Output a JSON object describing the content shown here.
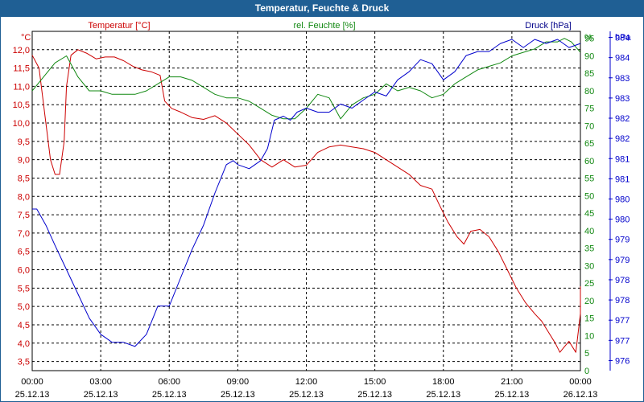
{
  "window": {
    "title": "Temperatur, Feuchte & Druck"
  },
  "colors": {
    "temperature": "#cc0000",
    "humidity": "#118811",
    "pressure": "#0000cc",
    "grid": "#000000"
  },
  "chart_data": {
    "type": "line",
    "title": "Temperatur, Feuchte & Druck",
    "legend": [
      "Temperatur [°C]",
      "rel. Feuchte [%]",
      "Druck [hPa]"
    ],
    "axes": {
      "left": {
        "unit": "°C",
        "min": 3.25,
        "max": 12.5,
        "ticks": [
          "12,0",
          "11,5",
          "11,0",
          "10,5",
          "10,0",
          "9,5",
          "9,0",
          "8,5",
          "8,0",
          "7,5",
          "7,0",
          "6,5",
          "6,0",
          "5,5",
          "5,0",
          "4,5",
          "4,0",
          "3,5"
        ]
      },
      "mid": {
        "unit": "%",
        "min": 0,
        "max": 97,
        "ticks": [
          "95",
          "90",
          "85",
          "80",
          "75",
          "70",
          "65",
          "60",
          "55",
          "50",
          "45",
          "40",
          "35",
          "30",
          "25",
          "20",
          "15",
          "10",
          "5",
          "0"
        ]
      },
      "right": {
        "unit": "hPa",
        "min": 976,
        "max": 984.4,
        "ticks": [
          [
            "984",
            984.25
          ],
          [
            "984",
            983.75
          ],
          [
            "983",
            983.25
          ],
          [
            "983",
            982.75
          ],
          [
            "982",
            982.25
          ],
          [
            "982",
            981.75
          ],
          [
            "981",
            981.25
          ],
          [
            "981",
            980.75
          ],
          [
            "980",
            980.25
          ],
          [
            "980",
            979.75
          ],
          [
            "979",
            979.25
          ],
          [
            "979",
            978.75
          ],
          [
            "978",
            978.25
          ],
          [
            "978",
            977.75
          ],
          [
            "977",
            977.25
          ],
          [
            "977",
            976.75
          ],
          [
            "976",
            976.25
          ]
        ]
      }
    },
    "x_ticks": [
      {
        "time": "00:00",
        "date": "25.12.13"
      },
      {
        "time": "03:00",
        "date": "25.12.13"
      },
      {
        "time": "06:00",
        "date": "25.12.13"
      },
      {
        "time": "09:00",
        "date": "25.12.13"
      },
      {
        "time": "12:00",
        "date": "25.12.13"
      },
      {
        "time": "15:00",
        "date": "25.12.13"
      },
      {
        "time": "18:00",
        "date": "25.12.13"
      },
      {
        "time": "21:00",
        "date": "25.12.13"
      },
      {
        "time": "00:00",
        "date": "26.12.13"
      }
    ],
    "x_range_hours": [
      0,
      24
    ],
    "series": [
      {
        "name": "Temperatur [°C]",
        "axis": "left",
        "x": [
          0,
          0.3,
          0.6,
          0.8,
          1.0,
          1.2,
          1.4,
          1.5,
          1.7,
          2.0,
          2.4,
          2.8,
          3.2,
          3.6,
          4.0,
          4.4,
          4.8,
          5.2,
          5.6,
          5.8,
          6.1,
          6.5,
          7.0,
          7.5,
          8.0,
          8.5,
          9.0,
          9.5,
          10.0,
          10.5,
          11.0,
          11.5,
          12.0,
          12.5,
          13.0,
          13.5,
          14.0,
          14.5,
          15.0,
          15.5,
          16.0,
          16.5,
          17.0,
          17.5,
          17.8,
          18.2,
          18.6,
          18.9,
          19.2,
          19.6,
          20.0,
          20.4,
          20.8,
          21.2,
          21.6,
          22.0,
          22.3,
          22.6,
          22.9,
          23.1,
          23.3,
          23.5,
          23.8,
          24.0
        ],
        "values": [
          11.85,
          11.5,
          10.0,
          9.0,
          8.6,
          8.6,
          9.5,
          11.0,
          11.85,
          12.0,
          11.9,
          11.75,
          11.8,
          11.8,
          11.7,
          11.55,
          11.45,
          11.4,
          11.3,
          10.6,
          10.4,
          10.3,
          10.15,
          10.1,
          10.2,
          10.0,
          9.7,
          9.4,
          9.0,
          8.8,
          9.0,
          8.8,
          8.85,
          9.2,
          9.35,
          9.4,
          9.35,
          9.3,
          9.2,
          9.0,
          8.8,
          8.6,
          8.3,
          8.2,
          7.8,
          7.3,
          6.9,
          6.7,
          7.05,
          7.1,
          6.9,
          6.5,
          6.0,
          5.5,
          5.1,
          4.8,
          4.6,
          4.3,
          4.0,
          3.75,
          3.9,
          4.05,
          3.75,
          4.8
        ],
        "extra": [
          [
            24.0,
            5.5
          ],
          [
            24.0,
            5.55
          ]
        ]
      },
      {
        "name": "rel. Feuchte [%]",
        "axis": "mid",
        "x": [
          0,
          0.5,
          1.0,
          1.5,
          2.0,
          2.5,
          3.0,
          3.5,
          4.0,
          4.5,
          5.0,
          5.5,
          6.0,
          6.5,
          7.0,
          7.5,
          8.0,
          8.5,
          9.0,
          9.5,
          10.0,
          10.5,
          11.0,
          11.5,
          12.0,
          12.5,
          13.0,
          13.5,
          14.0,
          14.5,
          15.0,
          15.5,
          16.0,
          16.5,
          17.0,
          17.5,
          18.0,
          18.5,
          19.0,
          19.5,
          20.0,
          20.5,
          21.0,
          21.5,
          22.0,
          22.5,
          23.0,
          23.3,
          23.6,
          24.0
        ],
        "values": [
          80,
          84,
          88,
          90,
          84,
          80,
          80,
          79,
          79,
          79,
          80,
          82,
          84,
          84,
          83,
          81,
          79,
          78,
          78,
          77,
          75,
          73,
          72,
          72,
          75,
          79,
          78,
          72,
          76,
          78,
          79,
          82,
          80,
          81,
          80,
          78,
          79,
          82,
          84,
          86,
          87,
          88,
          90,
          91,
          92,
          94,
          94,
          95,
          94,
          91
        ]
      },
      {
        "name": "Druck [hPa]",
        "axis": "right",
        "x": [
          0,
          0.2,
          0.6,
          1.0,
          1.5,
          2.0,
          2.5,
          3.0,
          3.5,
          4.0,
          4.5,
          5.0,
          5.5,
          6.0,
          6.5,
          7.0,
          7.5,
          8.0,
          8.5,
          8.8,
          9.0,
          9.5,
          10.0,
          10.3,
          10.6,
          11.0,
          11.3,
          11.6,
          12.0,
          12.5,
          13.0,
          13.5,
          14.0,
          14.5,
          15.0,
          15.5,
          16.0,
          16.5,
          17.0,
          17.5,
          18.0,
          18.5,
          19.0,
          19.5,
          20.0,
          20.5,
          21.0,
          21.5,
          22.0,
          22.5,
          23.0,
          23.5,
          24.0
        ],
        "values": [
          980.0,
          980.0,
          979.6,
          979.1,
          978.5,
          977.9,
          977.3,
          976.9,
          976.7,
          976.7,
          976.6,
          976.9,
          977.6,
          977.6,
          978.3,
          979.0,
          979.6,
          980.4,
          981.1,
          981.2,
          981.1,
          981.0,
          981.2,
          981.5,
          982.2,
          982.3,
          982.2,
          982.4,
          982.5,
          982.4,
          982.4,
          982.6,
          982.5,
          982.7,
          982.9,
          982.8,
          983.2,
          983.4,
          983.7,
          983.6,
          983.2,
          983.4,
          983.8,
          983.9,
          983.9,
          984.1,
          984.2,
          984.0,
          984.2,
          984.1,
          984.2,
          984.0,
          984.1
        ]
      }
    ]
  }
}
